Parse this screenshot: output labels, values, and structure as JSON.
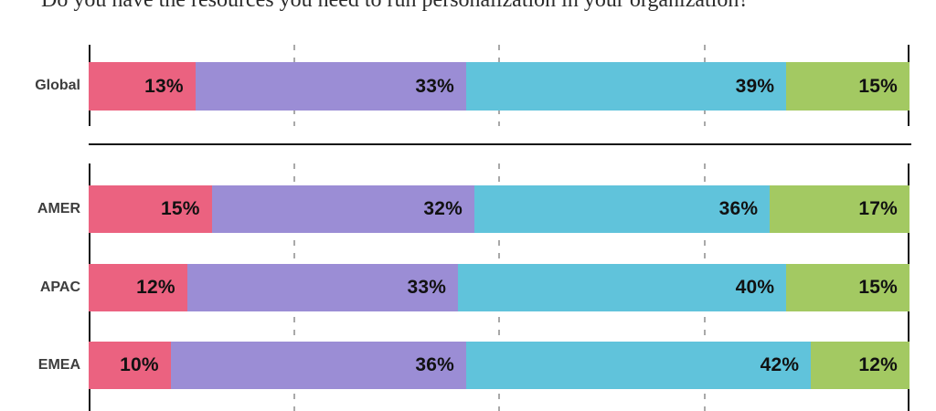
{
  "title": "Do you have the resources you need to run personalization in your organization?",
  "colors": {
    "pink": "#EB6280",
    "purple": "#9B8DD5",
    "teal": "#60C3DB",
    "green": "#A3C962",
    "axis": "#151515",
    "gridline": "#A9A9A9",
    "row_label": "#3D3D3D",
    "value_label": "#111111"
  },
  "chart_data": {
    "type": "bar",
    "orientation": "horizontal",
    "stacked": true,
    "title": "Do you have the resources you need to run personalization in your organization?",
    "categories": [
      "Global",
      "AMER",
      "APAC",
      "EMEA"
    ],
    "series": [
      {
        "name": "segment_1",
        "color": "#EB6280",
        "values": [
          13,
          15,
          12,
          10
        ]
      },
      {
        "name": "segment_2",
        "color": "#9B8DD5",
        "values": [
          33,
          32,
          33,
          36
        ]
      },
      {
        "name": "segment_3",
        "color": "#60C3DB",
        "values": [
          39,
          36,
          40,
          42
        ]
      },
      {
        "name": "segment_4",
        "color": "#A3C962",
        "values": [
          15,
          17,
          15,
          12
        ]
      }
    ],
    "xlim": [
      0,
      100
    ],
    "value_label_format": "percent",
    "legend": "none",
    "grid": {
      "solid_pct": [
        0,
        100
      ],
      "dashed_pct": [
        25,
        50,
        75
      ]
    },
    "layout_note": "Global row in its own section above a divider line; AMER, APAC, EMEA grouped below"
  },
  "rows": [
    {
      "label": "Global",
      "segments": [
        {
          "value": 13,
          "label": "13%"
        },
        {
          "value": 33,
          "label": "33%"
        },
        {
          "value": 39,
          "label": "39%"
        },
        {
          "value": 15,
          "label": "15%"
        }
      ]
    },
    {
      "label": "AMER",
      "segments": [
        {
          "value": 15,
          "label": "15%"
        },
        {
          "value": 32,
          "label": "32%"
        },
        {
          "value": 36,
          "label": "36%"
        },
        {
          "value": 17,
          "label": "17%"
        }
      ]
    },
    {
      "label": "APAC",
      "segments": [
        {
          "value": 12,
          "label": "12%"
        },
        {
          "value": 33,
          "label": "33%"
        },
        {
          "value": 40,
          "label": "40%"
        },
        {
          "value": 15,
          "label": "15%"
        }
      ]
    },
    {
      "label": "EMEA",
      "segments": [
        {
          "value": 10,
          "label": "10%"
        },
        {
          "value": 36,
          "label": "36%"
        },
        {
          "value": 42,
          "label": "42%"
        },
        {
          "value": 12,
          "label": "12%"
        }
      ]
    }
  ]
}
